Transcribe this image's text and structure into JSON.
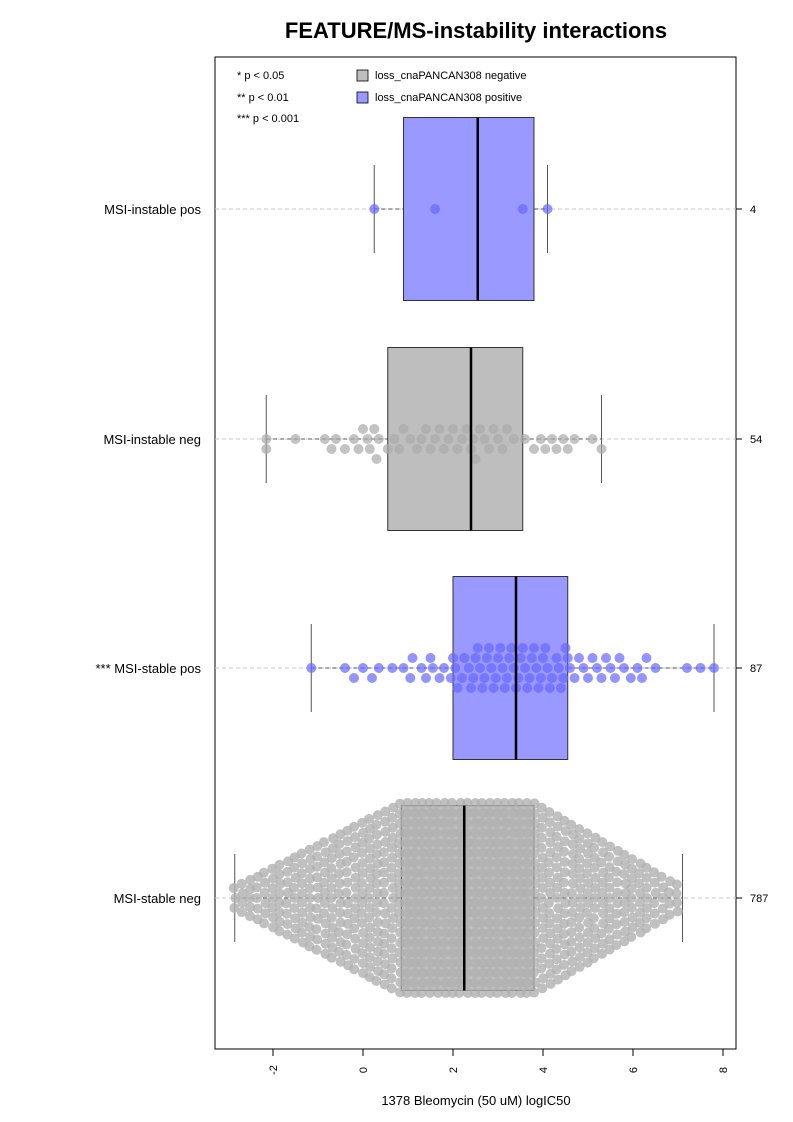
{
  "chart_data": {
    "type": "box",
    "title": "FEATURE/MS-instability interactions",
    "xlabel": "1378 Bleomycin (50 uM) logIC50",
    "ylabel": "",
    "xlim": [
      -3.0,
      8.3
    ],
    "xticks": [
      "-2",
      "0",
      "2",
      "4",
      "6",
      "8"
    ],
    "xtick_values": [
      -2,
      0,
      2,
      4,
      6,
      8
    ],
    "significance_legend": [
      "* p < 0.05",
      "** p < 0.01",
      "*** p < 0.001"
    ],
    "legend": [
      {
        "label": "loss_cnaPANCAN308 negative",
        "color": "#bebebe"
      },
      {
        "label": "loss_cnaPANCAN308 positive",
        "color": "#9999ff"
      }
    ],
    "grid": false,
    "legend_position": "top-left",
    "groups": [
      {
        "label": "MSI-instable pos",
        "count": "4",
        "color": "#9999ff",
        "points_color": "#6666ff",
        "whisker_low": 0.25,
        "q1": 0.9,
        "median": 2.55,
        "q3": 3.8,
        "whisker_high": 4.1,
        "points": [
          0.25,
          1.6,
          3.55,
          4.1
        ]
      },
      {
        "label": "MSI-instable neg",
        "count": "54",
        "color": "#bebebe",
        "points_color": "#aaaaaa",
        "whisker_low": -2.15,
        "q1": 0.55,
        "median": 2.4,
        "q3": 3.55,
        "whisker_high": 5.3,
        "points": [
          -2.15,
          -2.15,
          -1.5,
          -0.85,
          -0.7,
          -0.6,
          -0.4,
          -0.2,
          -0.1,
          0.0,
          0.1,
          0.15,
          0.25,
          0.3,
          0.35,
          0.55,
          0.7,
          0.8,
          0.9,
          1.05,
          1.2,
          1.3,
          1.4,
          1.5,
          1.6,
          1.7,
          1.8,
          1.9,
          2.0,
          2.1,
          2.2,
          2.3,
          2.4,
          2.45,
          2.5,
          2.6,
          2.7,
          2.8,
          2.9,
          3.0,
          3.1,
          3.2,
          3.35,
          3.6,
          3.8,
          3.95,
          4.05,
          4.2,
          4.3,
          4.45,
          4.55,
          4.7,
          5.1,
          5.3
        ]
      },
      {
        "label": "*** MSI-stable pos",
        "count": "87",
        "color": "#9999ff",
        "points_color": "#6666ff",
        "whisker_low": -1.15,
        "q1": 2.0,
        "median": 3.4,
        "q3": 4.55,
        "whisker_high": 7.8,
        "points": [
          -1.15,
          -0.4,
          -0.2,
          0.0,
          0.2,
          0.35,
          0.65,
          0.9,
          1.05,
          1.1,
          1.3,
          1.4,
          1.5,
          1.55,
          1.7,
          1.8,
          1.95,
          2.0,
          2.05,
          2.1,
          2.2,
          2.25,
          2.35,
          2.4,
          2.45,
          2.5,
          2.55,
          2.6,
          2.65,
          2.7,
          2.75,
          2.8,
          2.85,
          2.9,
          2.95,
          3.0,
          3.05,
          3.1,
          3.15,
          3.2,
          3.25,
          3.3,
          3.35,
          3.4,
          3.45,
          3.5,
          3.55,
          3.6,
          3.65,
          3.7,
          3.75,
          3.8,
          3.85,
          3.9,
          3.95,
          4.0,
          4.05,
          4.1,
          4.15,
          4.2,
          4.3,
          4.35,
          4.4,
          4.45,
          4.5,
          4.55,
          4.6,
          4.7,
          4.8,
          4.9,
          5.0,
          5.1,
          5.2,
          5.3,
          5.4,
          5.5,
          5.6,
          5.7,
          5.8,
          5.95,
          6.1,
          6.2,
          6.3,
          6.5,
          7.2,
          7.5,
          7.8
        ]
      },
      {
        "label": "MSI-stable neg",
        "count": "787",
        "color": "#bebebe",
        "points_color": "#b0b0b0",
        "whisker_low": -2.85,
        "q1": 0.85,
        "median": 2.25,
        "q3": 3.8,
        "whisker_high": 7.1,
        "distribution": "dense",
        "n_points": 787
      }
    ]
  }
}
